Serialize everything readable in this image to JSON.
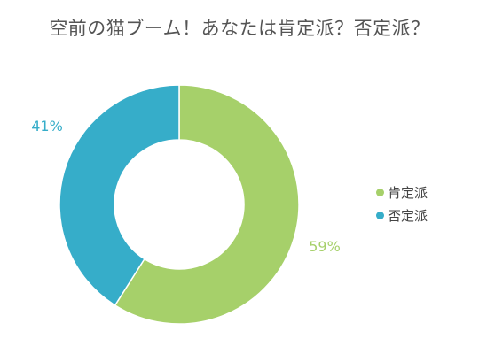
{
  "chart_data": {
    "type": "pie",
    "title": "空前の猫ブーム！あなたは肯定派？否定派？",
    "series": [
      {
        "name": "肯定派",
        "value": 59,
        "label": "59%",
        "color": "#a6d06a"
      },
      {
        "name": "否定派",
        "value": 41,
        "label": "41%",
        "color": "#36adc9"
      }
    ],
    "donut": true,
    "legend_position": "right"
  }
}
